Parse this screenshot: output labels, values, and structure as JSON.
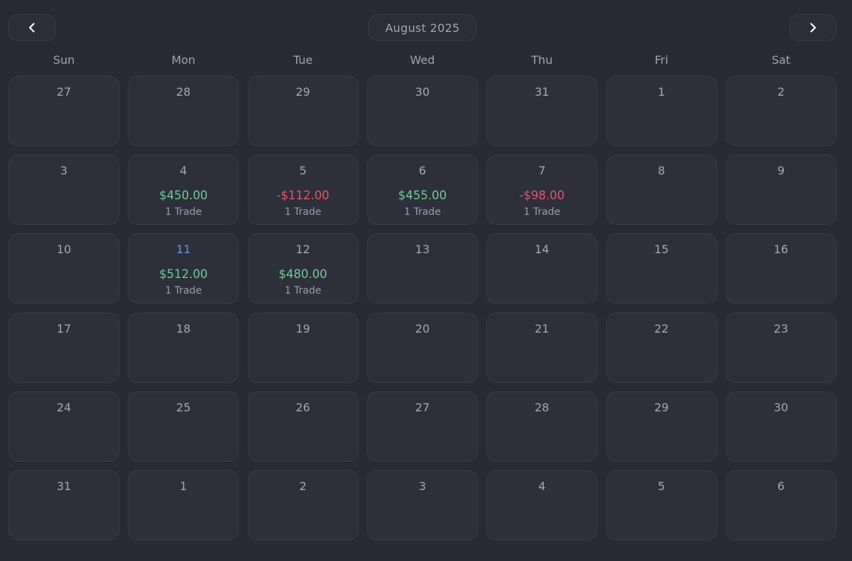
{
  "header": {
    "month_label": "August 2025",
    "prev_icon": "chevron-left-icon",
    "next_icon": "chevron-right-icon"
  },
  "weekdays": [
    "Sun",
    "Mon",
    "Tue",
    "Wed",
    "Thu",
    "Fri",
    "Sat"
  ],
  "colors": {
    "profit": "#6bcf95",
    "loss": "#e0586b",
    "today": "#5e9ee6"
  },
  "days": [
    {
      "day": "27"
    },
    {
      "day": "28"
    },
    {
      "day": "29"
    },
    {
      "day": "30"
    },
    {
      "day": "31"
    },
    {
      "day": "1"
    },
    {
      "day": "2"
    },
    {
      "day": "3"
    },
    {
      "day": "4",
      "pnl": "$450.00",
      "kind": "pos",
      "trades": "1 Trade"
    },
    {
      "day": "5",
      "pnl": "-$112.00",
      "kind": "neg",
      "trades": "1 Trade"
    },
    {
      "day": "6",
      "pnl": "$455.00",
      "kind": "pos",
      "trades": "1 Trade"
    },
    {
      "day": "7",
      "pnl": "-$98.00",
      "kind": "neg",
      "trades": "1 Trade"
    },
    {
      "day": "8"
    },
    {
      "day": "9"
    },
    {
      "day": "10"
    },
    {
      "day": "11",
      "today": true,
      "pnl": "$512.00",
      "kind": "pos",
      "trades": "1 Trade"
    },
    {
      "day": "12",
      "pnl": "$480.00",
      "kind": "pos",
      "trades": "1 Trade"
    },
    {
      "day": "13"
    },
    {
      "day": "14"
    },
    {
      "day": "15"
    },
    {
      "day": "16"
    },
    {
      "day": "17"
    },
    {
      "day": "18"
    },
    {
      "day": "19"
    },
    {
      "day": "20"
    },
    {
      "day": "21"
    },
    {
      "day": "22"
    },
    {
      "day": "23"
    },
    {
      "day": "24"
    },
    {
      "day": "25"
    },
    {
      "day": "26"
    },
    {
      "day": "27"
    },
    {
      "day": "28"
    },
    {
      "day": "29"
    },
    {
      "day": "30"
    },
    {
      "day": "31"
    },
    {
      "day": "1"
    },
    {
      "day": "2"
    },
    {
      "day": "3"
    },
    {
      "day": "4"
    },
    {
      "day": "5"
    },
    {
      "day": "6"
    }
  ]
}
